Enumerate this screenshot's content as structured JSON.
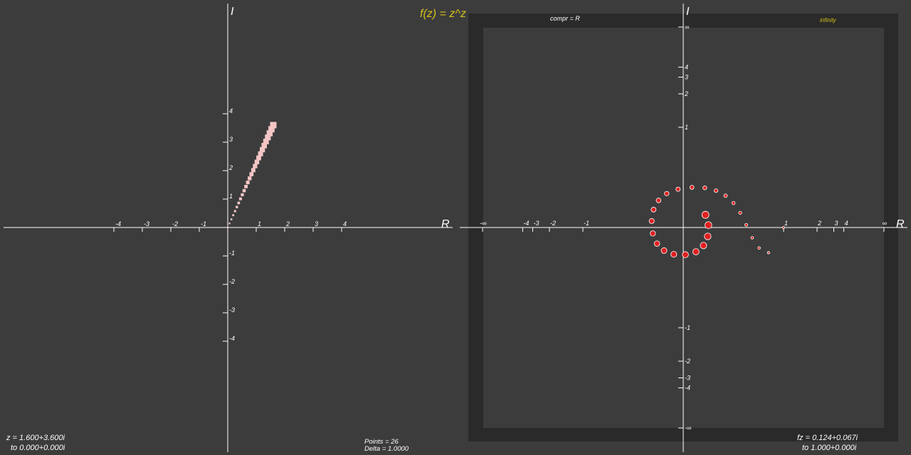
{
  "function_title": "f(z) = z^z",
  "input_panel": {
    "axis_labels": {
      "real": "R",
      "imag": "I"
    },
    "x_ticks": [
      "-4",
      "-3",
      "-2",
      "-1",
      "1",
      "2",
      "3",
      "4"
    ],
    "y_ticks": [
      "4",
      "3",
      "2",
      "1",
      "-1",
      "-2",
      "-3",
      "-4"
    ],
    "z_value": "z = 1.600+3.600i",
    "z_to": "to  0.000+0.000i"
  },
  "status": {
    "points": "Points  = 26",
    "delta": "Delta  = 1.0000"
  },
  "output_panel": {
    "axis_labels": {
      "real": "R",
      "imag": "I"
    },
    "compr_label": "compr = R",
    "infinity_label": "infinity",
    "x_ticks": [
      "-∞",
      "-4",
      "-3",
      "-2",
      "-1",
      "1",
      "2",
      "3",
      "4",
      "∞"
    ],
    "y_ticks": [
      "∞",
      "4",
      "3",
      "2",
      "1",
      "-1",
      "-2",
      "-3",
      "-4",
      "-∞"
    ],
    "fz_value": "fz = 0.124+0.067i",
    "fz_to": "to  1.000+0.000i"
  },
  "colors": {
    "background": "#3c3c3c",
    "frame": "#2a2a2a",
    "axis": "#ffffff",
    "title": "#d6c21a",
    "input_points": "#f4c6c6",
    "output_points": "#e02020"
  }
}
